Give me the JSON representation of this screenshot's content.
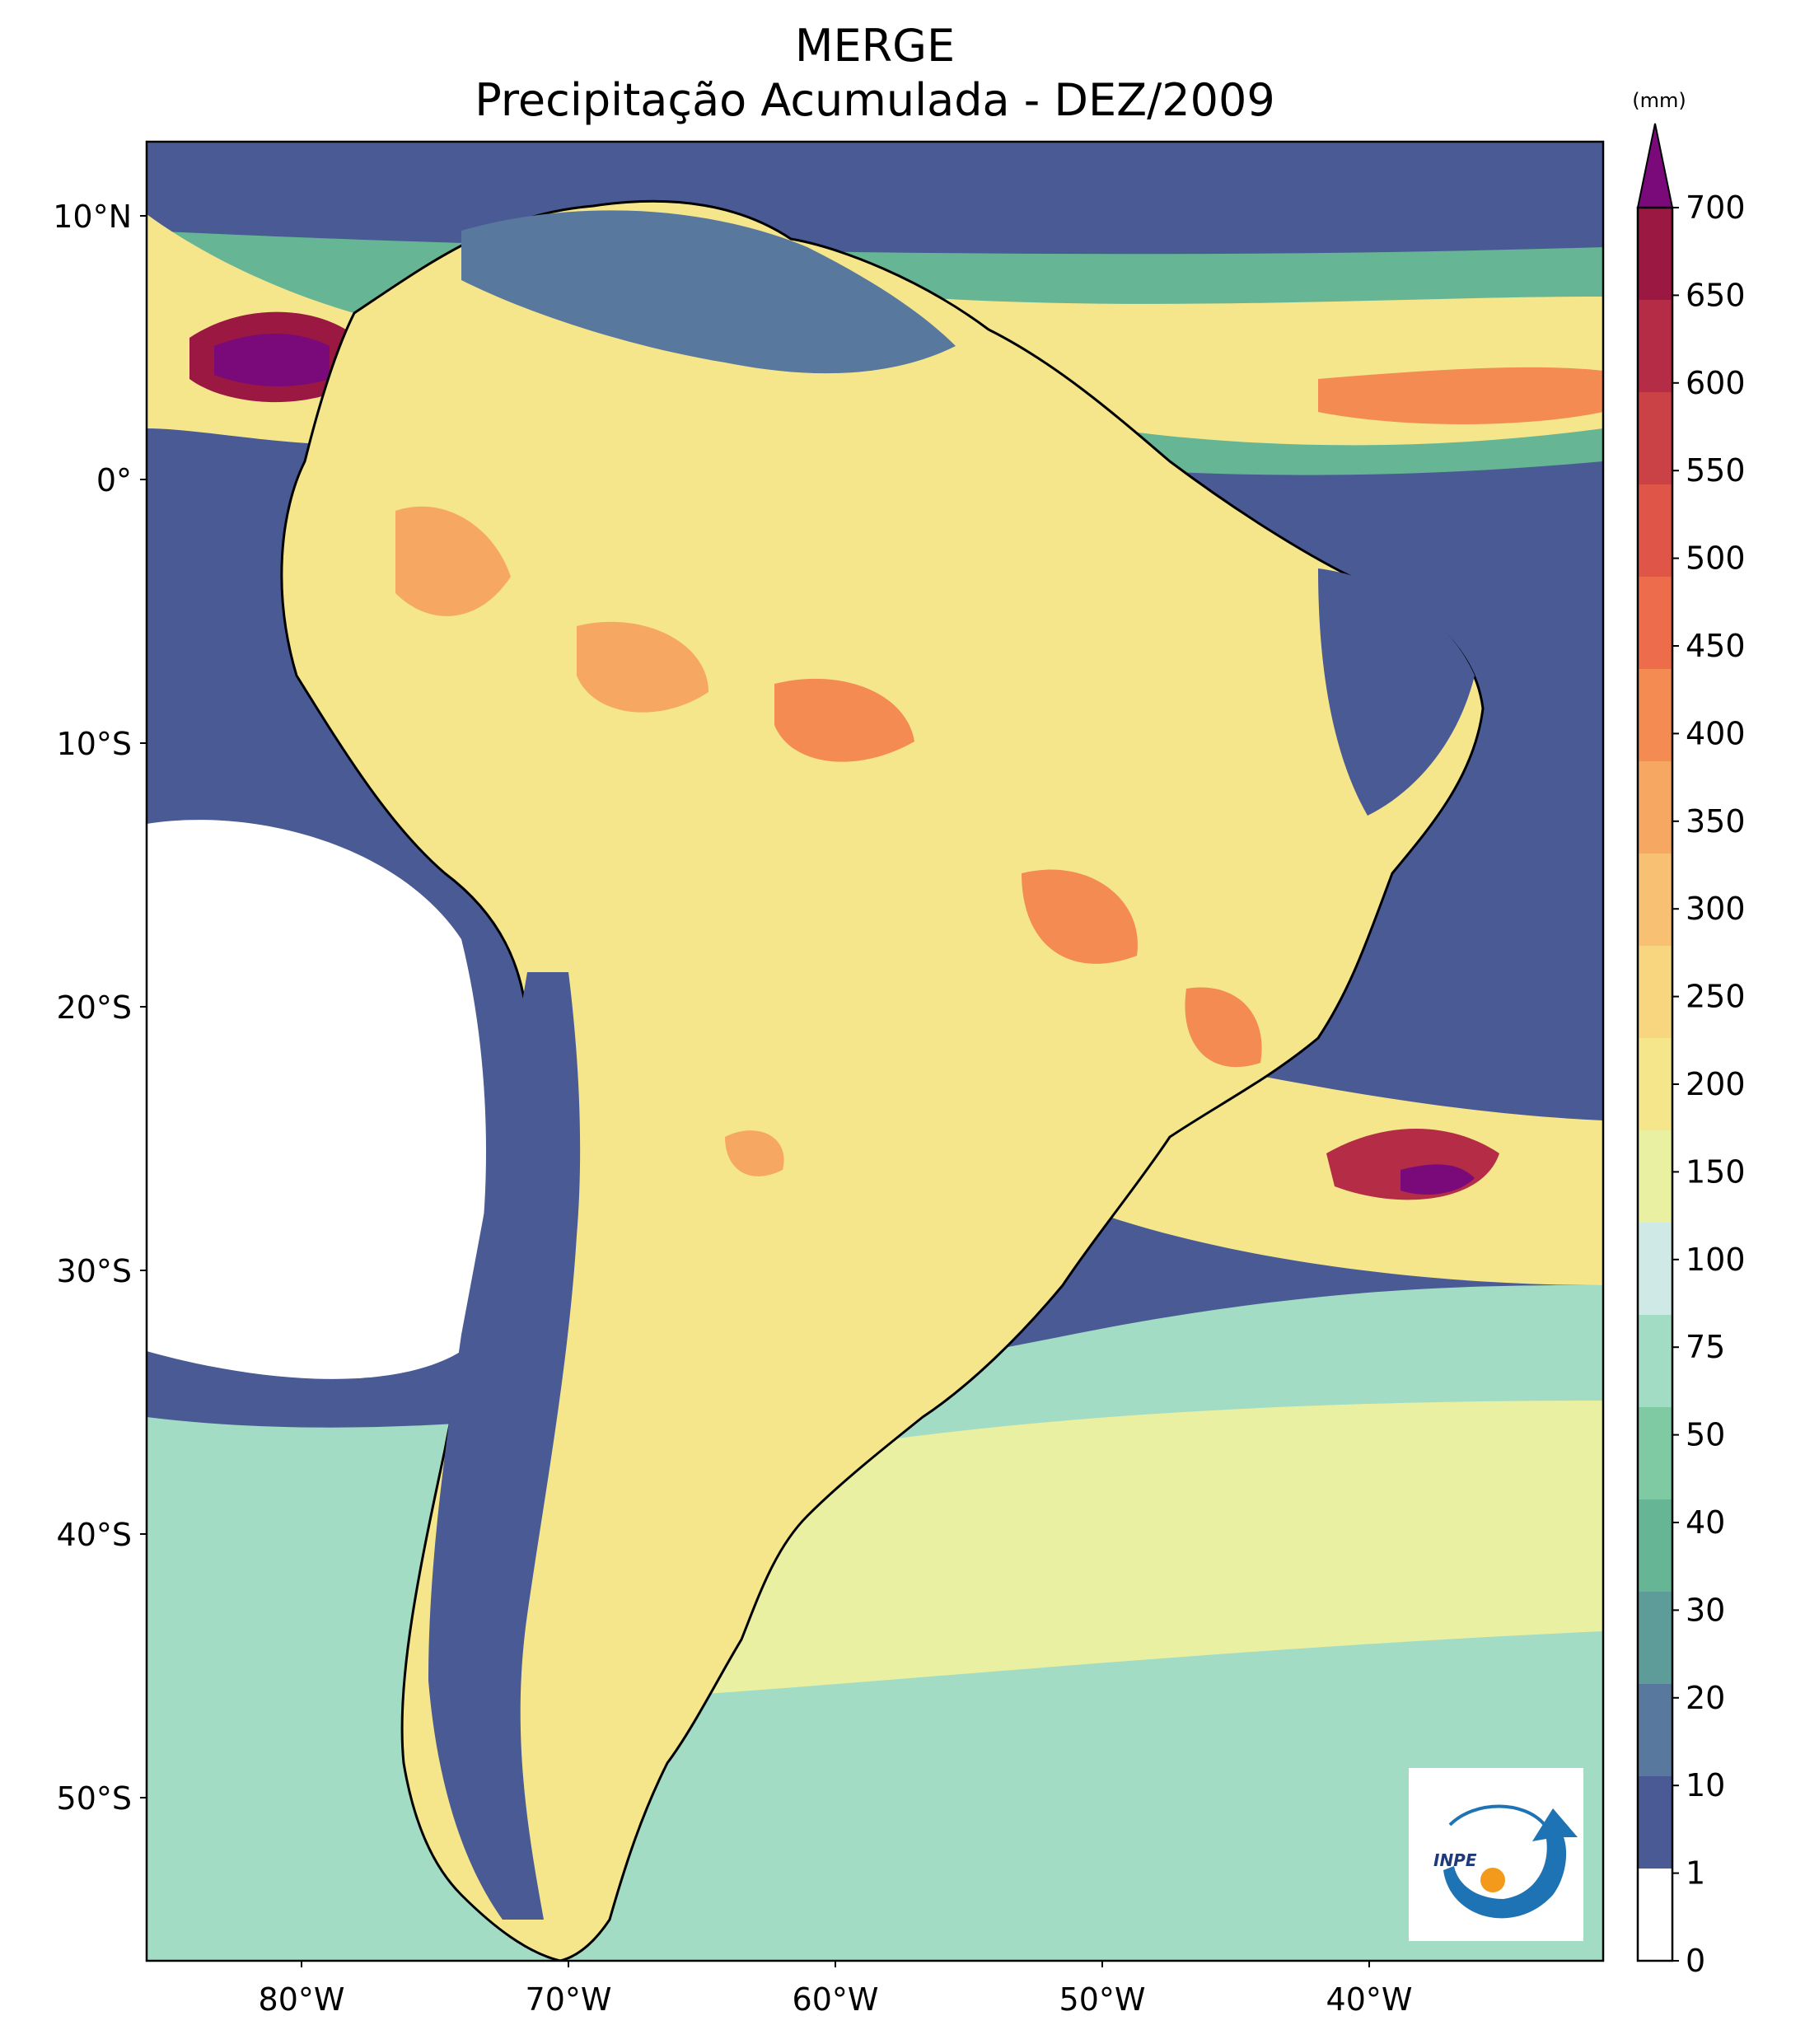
{
  "title": {
    "line1": "MERGE",
    "line2": "Precipitação Acumulada - DEZ/2009"
  },
  "axes": {
    "lat_labels": [
      "10°N",
      "0°",
      "10°S",
      "20°S",
      "30°S",
      "40°S",
      "50°S"
    ],
    "lon_labels": [
      "80°W",
      "70°W",
      "60°W",
      "50°W",
      "40°W"
    ]
  },
  "colorbar": {
    "unit": "(mm)",
    "levels": [
      0,
      1,
      10,
      20,
      30,
      40,
      50,
      75,
      100,
      150,
      200,
      250,
      300,
      350,
      400,
      450,
      500,
      550,
      600,
      650,
      700
    ],
    "level_labels": [
      "0",
      "1",
      "10",
      "20",
      "30",
      "40",
      "50",
      "75",
      "100",
      "150",
      "200",
      "250",
      "300",
      "350",
      "400",
      "450",
      "500",
      "550",
      "600",
      "650",
      "700"
    ],
    "colors": [
      "#ffffff",
      "#4a5a94",
      "#59789e",
      "#5e9c99",
      "#66b594",
      "#7fcaa2",
      "#a3dcc4",
      "#cfe9e6",
      "#eaf0a2",
      "#f5e68c",
      "#f8d57f",
      "#f8c072",
      "#f6a862",
      "#f38b53",
      "#ec6c4c",
      "#df5648",
      "#cb4246",
      "#b42c45",
      "#9a1842"
    ],
    "extend_color": "#7a0a7a"
  },
  "logo": {
    "text": "INPE"
  },
  "map_colors": {
    "ocean_dry": "#4a5a94",
    "wet": "#f5e68c",
    "very_wet": "#f38b53",
    "extreme": "#7a0a7a",
    "border": "#000000"
  }
}
